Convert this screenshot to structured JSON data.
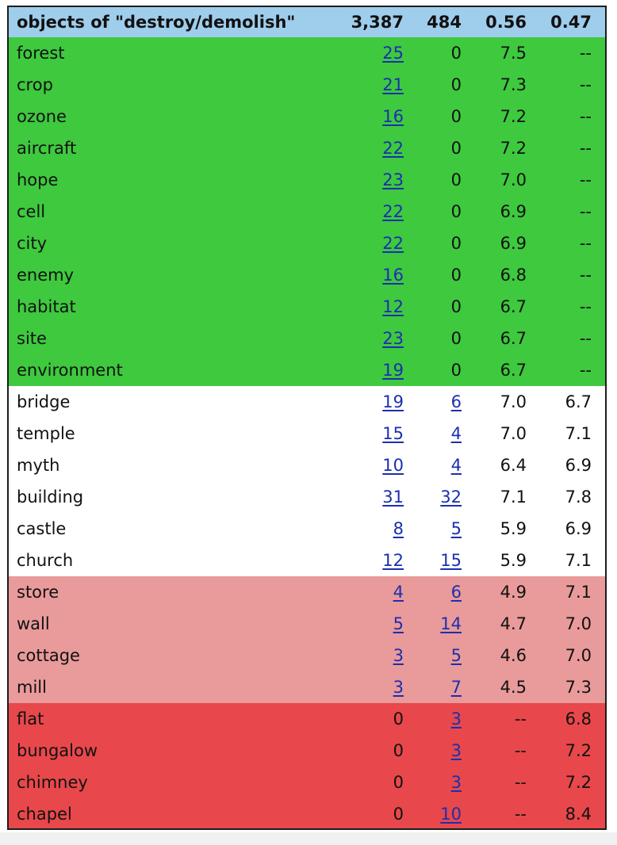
{
  "header": {
    "label": "objects of \"destroy/demolish\"",
    "col_a": "3,387",
    "col_b": "484",
    "col_c": "0.56",
    "col_d": "0.47"
  },
  "band_colors": {
    "header": "#9fcdec",
    "green": "#3ec93e",
    "white": "#ffffff",
    "pink": "#e99a9a",
    "red": "#e8484b",
    "link": "#1b2fae"
  },
  "rows": [
    {
      "band": "green",
      "name": "forest",
      "a": "25",
      "a_link": true,
      "b": "0",
      "b_link": false,
      "c": "7.5",
      "d": "--"
    },
    {
      "band": "green",
      "name": "crop",
      "a": "21",
      "a_link": true,
      "b": "0",
      "b_link": false,
      "c": "7.3",
      "d": "--"
    },
    {
      "band": "green",
      "name": "ozone",
      "a": "16",
      "a_link": true,
      "b": "0",
      "b_link": false,
      "c": "7.2",
      "d": "--"
    },
    {
      "band": "green",
      "name": "aircraft",
      "a": "22",
      "a_link": true,
      "b": "0",
      "b_link": false,
      "c": "7.2",
      "d": "--"
    },
    {
      "band": "green",
      "name": "hope",
      "a": "23",
      "a_link": true,
      "b": "0",
      "b_link": false,
      "c": "7.0",
      "d": "--"
    },
    {
      "band": "green",
      "name": "cell",
      "a": "22",
      "a_link": true,
      "b": "0",
      "b_link": false,
      "c": "6.9",
      "d": "--"
    },
    {
      "band": "green",
      "name": "city",
      "a": "22",
      "a_link": true,
      "b": "0",
      "b_link": false,
      "c": "6.9",
      "d": "--"
    },
    {
      "band": "green",
      "name": "enemy",
      "a": "16",
      "a_link": true,
      "b": "0",
      "b_link": false,
      "c": "6.8",
      "d": "--"
    },
    {
      "band": "green",
      "name": "habitat",
      "a": "12",
      "a_link": true,
      "b": "0",
      "b_link": false,
      "c": "6.7",
      "d": "--"
    },
    {
      "band": "green",
      "name": "site",
      "a": "23",
      "a_link": true,
      "b": "0",
      "b_link": false,
      "c": "6.7",
      "d": "--"
    },
    {
      "band": "green",
      "name": "environment",
      "a": "19",
      "a_link": true,
      "b": "0",
      "b_link": false,
      "c": "6.7",
      "d": "--"
    },
    {
      "band": "white",
      "name": "bridge",
      "a": "19",
      "a_link": true,
      "b": "6",
      "b_link": true,
      "c": "7.0",
      "d": "6.7"
    },
    {
      "band": "white",
      "name": "temple",
      "a": "15",
      "a_link": true,
      "b": "4",
      "b_link": true,
      "c": "7.0",
      "d": "7.1"
    },
    {
      "band": "white",
      "name": "myth",
      "a": "10",
      "a_link": true,
      "b": "4",
      "b_link": true,
      "c": "6.4",
      "d": "6.9"
    },
    {
      "band": "white",
      "name": "building",
      "a": "31",
      "a_link": true,
      "b": "32",
      "b_link": true,
      "c": "7.1",
      "d": "7.8"
    },
    {
      "band": "white",
      "name": "castle",
      "a": "8",
      "a_link": true,
      "b": "5",
      "b_link": true,
      "c": "5.9",
      "d": "6.9"
    },
    {
      "band": "white",
      "name": "church",
      "a": "12",
      "a_link": true,
      "b": "15",
      "b_link": true,
      "c": "5.9",
      "d": "7.1"
    },
    {
      "band": "pink",
      "name": "store",
      "a": "4",
      "a_link": true,
      "b": "6",
      "b_link": true,
      "c": "4.9",
      "d": "7.1"
    },
    {
      "band": "pink",
      "name": "wall",
      "a": "5",
      "a_link": true,
      "b": "14",
      "b_link": true,
      "c": "4.7",
      "d": "7.0"
    },
    {
      "band": "pink",
      "name": "cottage",
      "a": "3",
      "a_link": true,
      "b": "5",
      "b_link": true,
      "c": "4.6",
      "d": "7.0"
    },
    {
      "band": "pink",
      "name": "mill",
      "a": "3",
      "a_link": true,
      "b": "7",
      "b_link": true,
      "c": "4.5",
      "d": "7.3"
    },
    {
      "band": "red",
      "name": "flat",
      "a": "0",
      "a_link": false,
      "b": "3",
      "b_link": true,
      "c": "--",
      "d": "6.8"
    },
    {
      "band": "red",
      "name": "bungalow",
      "a": "0",
      "a_link": false,
      "b": "3",
      "b_link": true,
      "c": "--",
      "d": "7.2"
    },
    {
      "band": "red",
      "name": "chimney",
      "a": "0",
      "a_link": false,
      "b": "3",
      "b_link": true,
      "c": "--",
      "d": "7.2"
    },
    {
      "band": "red",
      "name": "chapel",
      "a": "0",
      "a_link": false,
      "b": "10",
      "b_link": true,
      "c": "--",
      "d": "8.4"
    }
  ]
}
